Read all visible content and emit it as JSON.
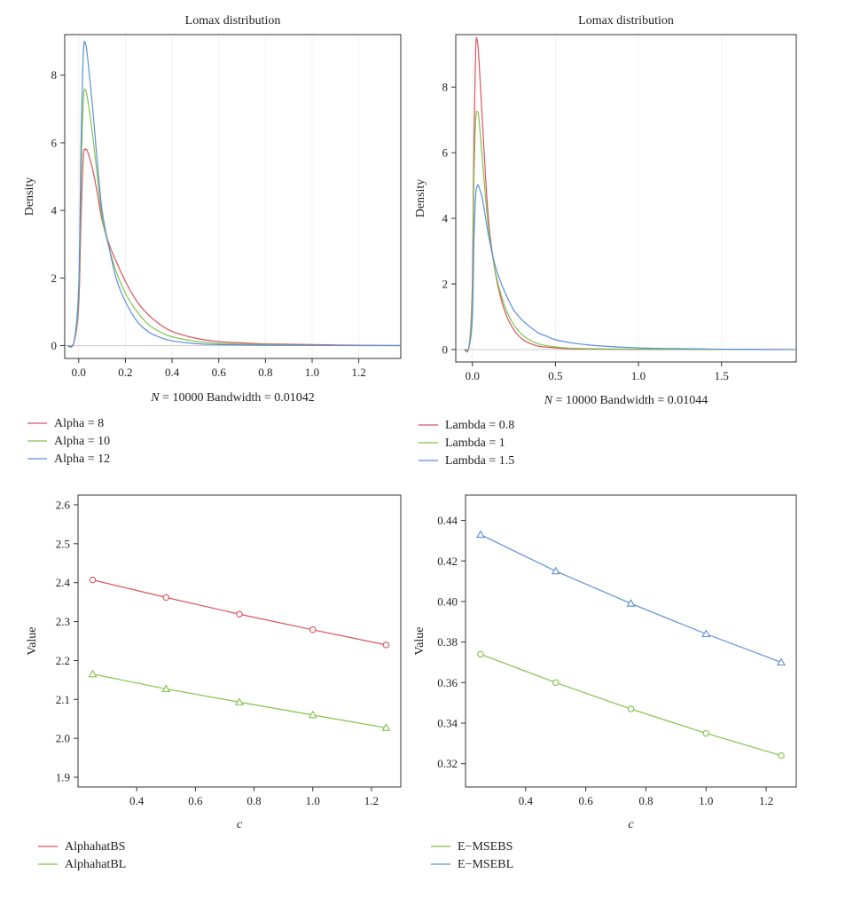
{
  "colors": {
    "red": "#d9535e",
    "green": "#82c24a",
    "blue": "#5b8fd9",
    "grid": "#cccccc",
    "axis": "#333333"
  },
  "chart_data": [
    {
      "id": "tl",
      "type": "line",
      "title": "Lomax distribution",
      "xlabel_italic": "N",
      "xlabel_rest": " = 10000 Bandwidth = 0.01042",
      "ylabel": "Density",
      "xlim": [
        -0.06,
        1.38
      ],
      "ylim": [
        -0.38,
        9.2
      ],
      "xticks": [
        0.0,
        0.2,
        0.4,
        0.6,
        0.8,
        1.0,
        1.2
      ],
      "xtick_labels": [
        "0.0",
        "0.2",
        "0.4",
        "0.6",
        "0.8",
        "1.0",
        "1.2"
      ],
      "yticks": [
        0,
        2,
        4,
        6,
        8
      ],
      "ytick_labels": [
        "0",
        "2",
        "4",
        "6",
        "8"
      ],
      "baseline": 0,
      "series": [
        {
          "name": "Alpha = 8",
          "color": "red",
          "x": [
            -0.05,
            -0.02,
            0.0,
            0.01,
            0.02,
            0.03,
            0.04,
            0.06,
            0.08,
            0.1,
            0.13,
            0.16,
            0.2,
            0.25,
            0.3,
            0.35,
            0.4,
            0.5,
            0.6,
            0.7,
            0.8,
            0.9,
            1.0,
            1.1,
            1.2,
            1.38
          ],
          "y": [
            0,
            0.1,
            1.2,
            3.8,
            5.6,
            5.8,
            5.7,
            5.2,
            4.5,
            3.7,
            3.0,
            2.5,
            1.9,
            1.3,
            0.9,
            0.62,
            0.42,
            0.22,
            0.12,
            0.08,
            0.05,
            0.04,
            0.03,
            0.02,
            0.01,
            0
          ]
        },
        {
          "name": "Alpha = 10",
          "color": "green",
          "x": [
            -0.05,
            -0.02,
            0.0,
            0.01,
            0.02,
            0.03,
            0.04,
            0.06,
            0.08,
            0.1,
            0.13,
            0.16,
            0.2,
            0.25,
            0.3,
            0.35,
            0.4,
            0.5,
            0.6,
            0.7,
            0.8,
            0.9,
            1.0,
            1.2,
            1.38
          ],
          "y": [
            0,
            0.1,
            1.5,
            5.0,
            7.3,
            7.55,
            7.2,
            6.2,
            5.0,
            3.8,
            2.9,
            2.2,
            1.55,
            1.0,
            0.62,
            0.4,
            0.26,
            0.13,
            0.07,
            0.04,
            0.03,
            0.02,
            0.01,
            0.005,
            0
          ]
        },
        {
          "name": "Alpha = 12",
          "color": "blue",
          "x": [
            -0.05,
            -0.02,
            0.0,
            0.01,
            0.02,
            0.03,
            0.04,
            0.06,
            0.08,
            0.1,
            0.13,
            0.16,
            0.2,
            0.25,
            0.3,
            0.35,
            0.4,
            0.5,
            0.6,
            0.7,
            0.8,
            1.0,
            1.2,
            1.38
          ],
          "y": [
            0,
            0.12,
            1.8,
            6.0,
            8.7,
            8.9,
            8.4,
            7.0,
            5.4,
            4.0,
            2.9,
            2.0,
            1.3,
            0.72,
            0.4,
            0.24,
            0.14,
            0.06,
            0.03,
            0.02,
            0.01,
            0.005,
            0,
            0
          ]
        }
      ]
    },
    {
      "id": "tr",
      "type": "line",
      "title": "Lomax distribution",
      "xlabel_italic": "N",
      "xlabel_rest": " = 10000 Bandwidth = 0.01044",
      "ylabel": "Density",
      "xlim": [
        -0.1,
        1.95
      ],
      "ylim": [
        -0.38,
        9.6
      ],
      "xticks": [
        0.0,
        0.5,
        1.0,
        1.5
      ],
      "xtick_labels": [
        "0.0",
        "0.5",
        "1.0",
        "1.5"
      ],
      "yticks": [
        0,
        2,
        4,
        6,
        8
      ],
      "ytick_labels": [
        "0",
        "2",
        "4",
        "6",
        "8"
      ],
      "baseline": 0,
      "series": [
        {
          "name": "Lambda = 0.8",
          "color": "red",
          "x": [
            -0.05,
            -0.02,
            0.0,
            0.01,
            0.02,
            0.03,
            0.04,
            0.06,
            0.08,
            0.1,
            0.13,
            0.16,
            0.2,
            0.25,
            0.3,
            0.35,
            0.4,
            0.5,
            0.6,
            0.8,
            1.0,
            1.2,
            1.5,
            1.95
          ],
          "y": [
            0,
            0.1,
            2.0,
            6.5,
            9.2,
            9.4,
            8.8,
            7.0,
            5.2,
            3.8,
            2.6,
            1.8,
            1.1,
            0.6,
            0.32,
            0.18,
            0.1,
            0.05,
            0.02,
            0.01,
            0.005,
            0,
            0,
            0
          ]
        },
        {
          "name": "Lambda = 1",
          "color": "green",
          "x": [
            -0.05,
            -0.02,
            0.0,
            0.01,
            0.02,
            0.03,
            0.04,
            0.06,
            0.08,
            0.1,
            0.13,
            0.16,
            0.2,
            0.25,
            0.3,
            0.35,
            0.4,
            0.5,
            0.6,
            0.8,
            1.0,
            1.2,
            1.5,
            1.95
          ],
          "y": [
            0,
            0.1,
            1.6,
            5.2,
            7.0,
            7.25,
            7.0,
            5.8,
            4.6,
            3.6,
            2.6,
            1.9,
            1.25,
            0.75,
            0.45,
            0.28,
            0.17,
            0.08,
            0.04,
            0.02,
            0.01,
            0.005,
            0,
            0
          ]
        },
        {
          "name": "Lambda = 1.5",
          "color": "blue",
          "x": [
            -0.05,
            -0.02,
            0.0,
            0.01,
            0.02,
            0.03,
            0.04,
            0.06,
            0.08,
            0.1,
            0.13,
            0.16,
            0.2,
            0.25,
            0.3,
            0.35,
            0.4,
            0.45,
            0.5,
            0.6,
            0.7,
            0.8,
            1.0,
            1.2,
            1.5,
            1.95
          ],
          "y": [
            0,
            0.08,
            1.0,
            3.4,
            4.7,
            5.0,
            4.95,
            4.6,
            4.0,
            3.4,
            2.7,
            2.2,
            1.7,
            1.2,
            0.9,
            0.68,
            0.5,
            0.4,
            0.3,
            0.2,
            0.14,
            0.1,
            0.05,
            0.03,
            0.01,
            0
          ]
        }
      ]
    },
    {
      "id": "bl",
      "type": "line",
      "title": "",
      "xlabel_italic": "c",
      "xlabel_rest": "",
      "ylabel": "Value",
      "xlim": [
        0.2,
        1.3
      ],
      "ylim": [
        1.875,
        2.625
      ],
      "xticks": [
        0.4,
        0.6,
        0.8,
        1.0,
        1.2
      ],
      "xtick_labels": [
        "0.4",
        "0.6",
        "0.8",
        "1.0",
        "1.2"
      ],
      "yticks": [
        1.9,
        2.0,
        2.1,
        2.2,
        2.3,
        2.4,
        2.5,
        2.6
      ],
      "ytick_labels": [
        "1.9",
        "2.0",
        "2.1",
        "2.2",
        "2.3",
        "2.4",
        "2.5",
        "2.6"
      ],
      "series": [
        {
          "name": "AlphahatBS",
          "color": "red",
          "marker": "circle",
          "x": [
            0.25,
            0.5,
            0.75,
            1.0,
            1.25
          ],
          "y": [
            2.407,
            2.362,
            2.319,
            2.279,
            2.24
          ]
        },
        {
          "name": "AlphahatBL",
          "color": "green",
          "marker": "triangle",
          "x": [
            0.25,
            0.5,
            0.75,
            1.0,
            1.25
          ],
          "y": [
            2.165,
            2.127,
            2.093,
            2.06,
            2.027
          ]
        }
      ]
    },
    {
      "id": "br",
      "type": "line",
      "title": "",
      "xlabel_italic": "c",
      "xlabel_rest": "",
      "ylabel": "Value",
      "xlim": [
        0.2,
        1.3
      ],
      "ylim": [
        0.3085,
        0.4525
      ],
      "xticks": [
        0.4,
        0.6,
        0.8,
        1.0,
        1.2
      ],
      "xtick_labels": [
        "0.4",
        "0.6",
        "0.8",
        "1.0",
        "1.2"
      ],
      "yticks": [
        0.32,
        0.34,
        0.36,
        0.38,
        0.4,
        0.42,
        0.44
      ],
      "ytick_labels": [
        "0.32",
        "0.34",
        "0.36",
        "0.38",
        "0.40",
        "0.42",
        "0.44"
      ],
      "series": [
        {
          "name": "E−MSEBS",
          "color": "green",
          "marker": "circle",
          "x": [
            0.25,
            0.5,
            0.75,
            1.0,
            1.25
          ],
          "y": [
            0.374,
            0.36,
            0.347,
            0.335,
            0.324
          ]
        },
        {
          "name": "E−MSEBL",
          "color": "blue",
          "marker": "triangle",
          "x": [
            0.25,
            0.5,
            0.75,
            1.0,
            1.25
          ],
          "y": [
            0.433,
            0.415,
            0.399,
            0.384,
            0.37
          ]
        }
      ]
    }
  ]
}
